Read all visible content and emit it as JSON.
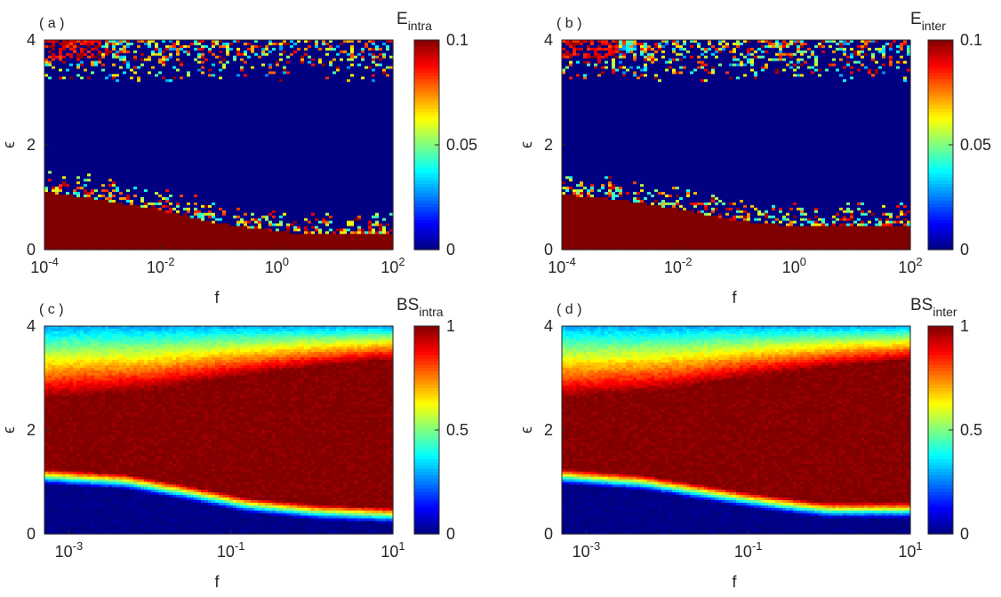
{
  "chart_data": [
    {
      "type": "heatmap",
      "panel_label": "( a )",
      "xlabel": "f",
      "ylabel": "ϵ",
      "x_scale": "log",
      "xlim": [
        0.0001,
        100
      ],
      "ylim": [
        0,
        4
      ],
      "x_ticks": [
        {
          "base": "10",
          "exp": "-4",
          "value": -4
        },
        {
          "base": "10",
          "exp": "-2",
          "value": -2
        },
        {
          "base": "10",
          "exp": "0",
          "value": 0
        },
        {
          "base": "10",
          "exp": "2",
          "value": 2
        }
      ],
      "y_ticks": [
        "0",
        "2",
        "4"
      ],
      "colorbar": {
        "title": "E",
        "subscript": "intra",
        "ticks": [
          "0",
          "0.05",
          "0.1"
        ],
        "range": [
          0,
          0.1
        ]
      },
      "colormap": "jet",
      "kind": "E",
      "boundary": [
        [
          -4,
          1.1
        ],
        [
          -3,
          0.95
        ],
        [
          -2,
          0.75
        ],
        [
          -1,
          0.5
        ],
        [
          0,
          0.35
        ],
        [
          0.5,
          0.3
        ],
        [
          2,
          0.32
        ]
      ]
    },
    {
      "type": "heatmap",
      "panel_label": "( b )",
      "xlabel": "f",
      "ylabel": "ϵ",
      "x_scale": "log",
      "xlim": [
        0.0001,
        100
      ],
      "ylim": [
        0,
        4
      ],
      "x_ticks": [
        {
          "base": "10",
          "exp": "-4",
          "value": -4
        },
        {
          "base": "10",
          "exp": "-2",
          "value": -2
        },
        {
          "base": "10",
          "exp": "0",
          "value": 0
        },
        {
          "base": "10",
          "exp": "2",
          "value": 2
        }
      ],
      "y_ticks": [
        "0",
        "2",
        "4"
      ],
      "colorbar": {
        "title": "E",
        "subscript": "inter",
        "ticks": [
          "0",
          "0.05",
          "0.1"
        ],
        "range": [
          0,
          0.1
        ]
      },
      "colormap": "jet",
      "kind": "E",
      "boundary": [
        [
          -4,
          1.05
        ],
        [
          -3,
          0.95
        ],
        [
          -2,
          0.78
        ],
        [
          -1,
          0.55
        ],
        [
          0,
          0.45
        ],
        [
          1,
          0.45
        ],
        [
          2,
          0.47
        ]
      ]
    },
    {
      "type": "heatmap",
      "panel_label": "( c )",
      "xlabel": "f",
      "ylabel": "ϵ",
      "x_scale": "log",
      "xlim": [
        0.0005,
        10
      ],
      "ylim": [
        0,
        4
      ],
      "x_ticks": [
        {
          "base": "10",
          "exp": "-3",
          "value": -3
        },
        {
          "base": "10",
          "exp": "-1",
          "value": -1
        },
        {
          "base": "10",
          "exp": "1",
          "value": 1
        }
      ],
      "y_ticks": [
        "0",
        "2",
        "4"
      ],
      "colorbar": {
        "title": "BS",
        "subscript": "intra",
        "ticks": [
          "0",
          "0.5",
          "1"
        ],
        "range": [
          0,
          1
        ]
      },
      "colormap": "jet",
      "kind": "BS",
      "boundary": [
        [
          -3.3,
          1.1
        ],
        [
          -2.3,
          1.0
        ],
        [
          -1.6,
          0.8
        ],
        [
          -0.8,
          0.55
        ],
        [
          0,
          0.42
        ],
        [
          1,
          0.35
        ]
      ],
      "upper": [
        [
          -3.3,
          2.6
        ],
        [
          -2,
          2.75
        ],
        [
          -1,
          3.0
        ],
        [
          0,
          3.2
        ],
        [
          1,
          3.35
        ]
      ]
    },
    {
      "type": "heatmap",
      "panel_label": "( d )",
      "xlabel": "f",
      "ylabel": "ϵ",
      "x_scale": "log",
      "xlim": [
        0.0005,
        10
      ],
      "ylim": [
        0,
        4
      ],
      "x_ticks": [
        {
          "base": "10",
          "exp": "-3",
          "value": -3
        },
        {
          "base": "10",
          "exp": "-1",
          "value": -1
        },
        {
          "base": "10",
          "exp": "1",
          "value": 1
        }
      ],
      "y_ticks": [
        "0",
        "2",
        "4"
      ],
      "colorbar": {
        "title": "BS",
        "subscript": "inter",
        "ticks": [
          "0",
          "0.5",
          "1"
        ],
        "range": [
          0,
          1
        ]
      },
      "colormap": "jet",
      "kind": "BS",
      "boundary": [
        [
          -3.3,
          1.1
        ],
        [
          -2.3,
          0.98
        ],
        [
          -1.6,
          0.8
        ],
        [
          -0.8,
          0.6
        ],
        [
          -0.3,
          0.5
        ],
        [
          0,
          0.45
        ],
        [
          1,
          0.45
        ]
      ],
      "upper": [
        [
          -3.3,
          2.6
        ],
        [
          -2,
          2.75
        ],
        [
          -1,
          3.0
        ],
        [
          0,
          3.2
        ],
        [
          1,
          3.35
        ]
      ]
    }
  ]
}
